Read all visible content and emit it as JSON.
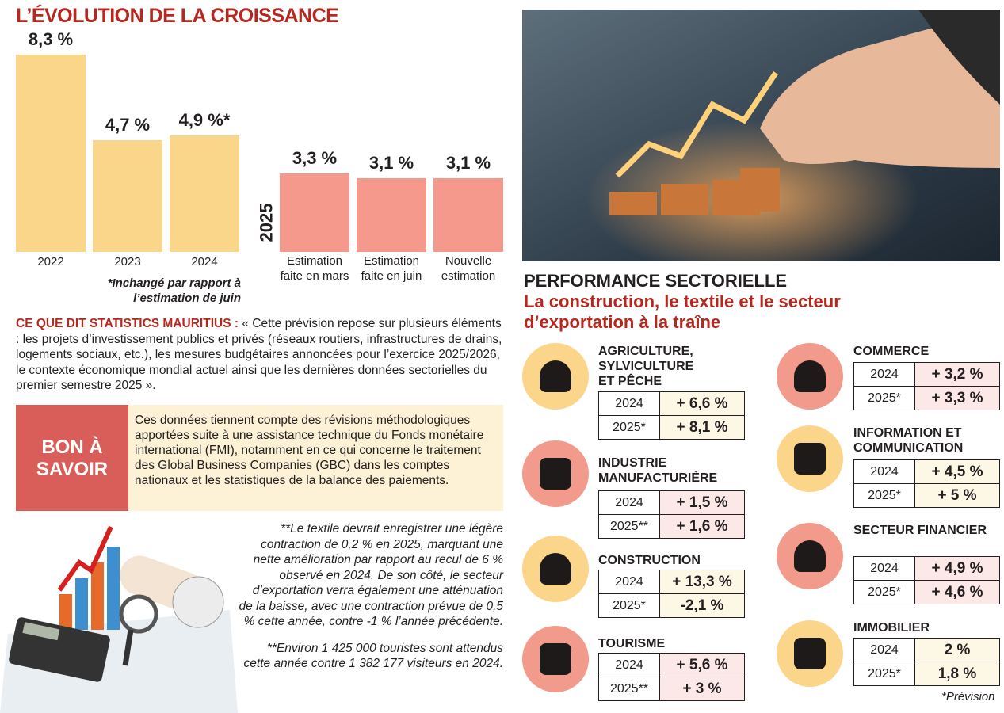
{
  "chart_data": {
    "type": "bar",
    "title": "L’ÉVOLUTION DE LA CROISSANCE",
    "categories": [
      "2022",
      "2023",
      "2024"
    ],
    "values": [
      8.3,
      4.7,
      4.9
    ],
    "value_labels": [
      "8,3 %",
      "4,7 %",
      "4,9 %*"
    ],
    "group2_label": "2025",
    "categories2": [
      "Estimation faite en mars",
      "Estimation faite en juin",
      "Nouvelle estimation"
    ],
    "values2": [
      3.3,
      3.1,
      3.1
    ],
    "value_labels2": [
      "3,3 %",
      "3,1 %",
      "3,1 %"
    ],
    "colors": {
      "past": "#f9d68a",
      "2025": "#f4998c"
    },
    "footnote": "*Inchangé par rapport à l’estimation de juin"
  },
  "statistics": {
    "label": "CE QUE DIT STATISTICS MAURITIUS :",
    "text": " « Cette prévision repose sur plusieurs éléments : les projets d’investissement publics et privés (réseaux routiers, infrastructures de drains, logements sociaux, etc.), les mesures budgétaires annoncées pour l’exercice 2025/2026, le contexte économique mondial actuel ainsi que les dernières données sectorielles du premier semestre 2025 »."
  },
  "bon_a_savoir": {
    "title": "BON À SAVOIR",
    "text": "Ces données tiennent compte des révisions méthodologiques apportées suite à une assistance technique du Fonds monétaire international (FMI), notamment en ce qui concerne le traitement des Global Business Companies (GBC) dans les comptes nationaux et les statistiques de la balance des paiements."
  },
  "notes": [
    "**Le textile devrait enregistrer une légère contraction de 0,2 % en 2025, marquant une nette amélioration par rapport au recul de 6 % observé en 2024. De son côté, le secteur d’exportation verra également une atténuation de la baisse, avec une contraction prévue de 0,5 % cette année, contre -1 % l’année précédente.",
    "**Environ 1 425 000 touristes sont attendus cette année contre 1 382 177 visiteurs en 2024."
  ],
  "performance": {
    "title": "PERFORMANCE SECTORIELLE",
    "subtitle": "La construction, le textile et le secteur d’exportation à la traîne",
    "footnote": "*Prévision",
    "sectors": [
      {
        "name": "AGRICULTURE, SYLVICULTURE ET PÊCHE",
        "icon": "plant-icon",
        "color": "#fbd68a",
        "rows": [
          {
            "year": "2024",
            "value": "+ 6,6 %"
          },
          {
            "year": "2025*",
            "value": "+ 8,1 %"
          }
        ]
      },
      {
        "name": "INDUSTRIE MANUFACTURIÈRE",
        "icon": "factory-conveyor-icon",
        "color": "#f29a8c",
        "rows": [
          {
            "year": "2024",
            "value": "+ 1,5 %"
          },
          {
            "year": "2025**",
            "value": "+ 1,6 %"
          }
        ]
      },
      {
        "name": "CONSTRUCTION",
        "icon": "excavator-icon",
        "color": "#fbd68a",
        "rows": [
          {
            "year": "2024",
            "value": "+ 13,3 %"
          },
          {
            "year": "2025*",
            "value": "-2,1 %"
          }
        ]
      },
      {
        "name": "TOURISME",
        "icon": "beach-umbrella-icon",
        "color": "#f29a8c",
        "rows": [
          {
            "year": "2024",
            "value": "+ 5,6 %"
          },
          {
            "year": "2025**",
            "value": "+ 3 %"
          }
        ]
      },
      {
        "name": "COMMERCE",
        "icon": "shopping-cart-icon",
        "color": "#f29a8c",
        "rows": [
          {
            "year": "2024",
            "value": "+ 3,2 %"
          },
          {
            "year": "2025*",
            "value": "+ 3,3 %"
          }
        ]
      },
      {
        "name": "INFORMATION ET COMMUNICATION",
        "icon": "chat-bubbles-icon",
        "color": "#fbd68a",
        "rows": [
          {
            "year": "2024",
            "value": "+ 4,5 %"
          },
          {
            "year": "2025*",
            "value": "+ 5 %"
          }
        ]
      },
      {
        "name": "SECTEUR FINANCIER",
        "icon": "money-bag-icon",
        "color": "#f29a8c",
        "rows": [
          {
            "year": "2024",
            "value": "+ 4,9 %"
          },
          {
            "year": "2025*",
            "value": "+ 4,6 %"
          }
        ]
      },
      {
        "name": "IMMOBILIER",
        "icon": "building-icon",
        "color": "#fbd68a",
        "rows": [
          {
            "year": "2024",
            "value": "2 %"
          },
          {
            "year": "2025*",
            "value": "1,8 %"
          }
        ]
      }
    ]
  }
}
